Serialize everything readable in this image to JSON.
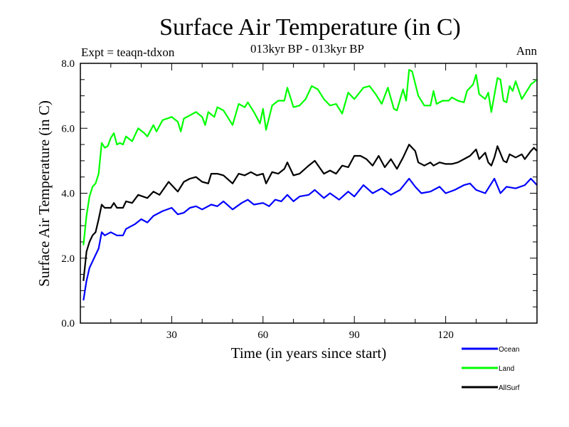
{
  "chart_data": {
    "type": "line",
    "title": "Surface Air Temperature (in C)",
    "subtitle": "013kyr BP - 013kyr BP",
    "left_label": "Expt = teaqn-tdxon",
    "right_label": "Ann",
    "xlabel": "Time (in years since start)",
    "ylabel": "Surface Air Temperature (in C)",
    "xlim": [
      0,
      150
    ],
    "ylim": [
      0,
      8
    ],
    "xticks": [
      30,
      60,
      90,
      120
    ],
    "xtick_labels": [
      "30",
      "60",
      "90",
      "120"
    ],
    "yticks": [
      0,
      2,
      4,
      6,
      8
    ],
    "ytick_labels": [
      "0.0",
      "2.0",
      "4.0",
      "6.0",
      "8.0"
    ],
    "grid": false,
    "legend_position": "bottom-right-outside",
    "series": [
      {
        "name": "Ocean",
        "color": "#0000ff",
        "x": [
          1,
          2,
          3,
          4,
          5,
          6,
          7,
          8,
          10,
          12,
          14,
          15,
          18,
          20,
          22,
          24,
          27,
          30,
          32,
          34,
          36,
          38,
          40,
          43,
          45,
          47,
          50,
          53,
          55,
          57,
          60,
          62,
          64,
          66,
          68,
          70,
          72,
          75,
          77,
          80,
          82,
          85,
          88,
          90,
          93,
          96,
          99,
          102,
          105,
          108,
          110,
          112,
          115,
          118,
          120,
          123,
          126,
          128,
          130,
          133,
          136,
          138,
          140,
          143,
          146,
          148,
          150
        ],
        "y": [
          0.7,
          1.3,
          1.7,
          1.9,
          2.1,
          2.3,
          2.8,
          2.7,
          2.8,
          2.7,
          2.7,
          2.9,
          3.05,
          3.2,
          3.1,
          3.3,
          3.45,
          3.55,
          3.35,
          3.4,
          3.55,
          3.6,
          3.5,
          3.65,
          3.6,
          3.75,
          3.5,
          3.7,
          3.8,
          3.65,
          3.7,
          3.6,
          3.8,
          3.75,
          3.95,
          3.75,
          3.9,
          3.95,
          4.1,
          3.85,
          4.0,
          3.8,
          4.05,
          3.9,
          4.25,
          4.0,
          4.15,
          3.95,
          4.1,
          4.45,
          4.2,
          4.0,
          4.05,
          4.2,
          4.0,
          4.1,
          4.25,
          4.3,
          4.1,
          4.0,
          4.45,
          4.0,
          4.2,
          4.15,
          4.25,
          4.45,
          4.25
        ]
      },
      {
        "name": "Land",
        "color": "#00ff00",
        "x": [
          1,
          2,
          3,
          4,
          5,
          6,
          7,
          8,
          9,
          10,
          11,
          12,
          13,
          14,
          15,
          17,
          19,
          21,
          22,
          24,
          25,
          27,
          30,
          32,
          33,
          34,
          36,
          38,
          40,
          41,
          42,
          44,
          45,
          47,
          50,
          52,
          54,
          55,
          57,
          59,
          60,
          61,
          63,
          65,
          67,
          68,
          70,
          72,
          74,
          76,
          78,
          80,
          82,
          84,
          86,
          88,
          90,
          93,
          95,
          97,
          99,
          101,
          103,
          104,
          106,
          107,
          108,
          109,
          111,
          113,
          115,
          116,
          117,
          119,
          121,
          122,
          124,
          126,
          127,
          129,
          130,
          131,
          133,
          134,
          135,
          137,
          138,
          139,
          140,
          141,
          142,
          143,
          145,
          147,
          148,
          150
        ],
        "y": [
          2.4,
          3.3,
          3.9,
          4.2,
          4.3,
          4.6,
          5.55,
          5.4,
          5.45,
          5.7,
          5.85,
          5.5,
          5.55,
          5.5,
          5.75,
          5.6,
          6.0,
          5.85,
          5.75,
          6.1,
          5.9,
          6.25,
          6.35,
          6.2,
          5.9,
          6.3,
          6.4,
          6.5,
          6.35,
          6.1,
          6.5,
          6.35,
          6.65,
          6.55,
          6.1,
          6.75,
          6.65,
          6.8,
          6.5,
          6.15,
          6.6,
          5.95,
          6.7,
          6.85,
          6.85,
          7.25,
          6.65,
          6.7,
          6.9,
          7.3,
          7.2,
          6.9,
          6.7,
          6.75,
          6.45,
          7.1,
          6.9,
          7.25,
          7.3,
          7.05,
          6.75,
          7.25,
          6.6,
          6.55,
          7.2,
          6.85,
          7.8,
          7.75,
          7.0,
          6.7,
          6.7,
          7.15,
          6.75,
          6.85,
          6.85,
          6.95,
          6.85,
          6.8,
          7.15,
          7.35,
          7.65,
          7.05,
          6.9,
          7.1,
          6.5,
          7.55,
          7.5,
          6.85,
          6.8,
          7.3,
          7.15,
          7.45,
          6.9,
          7.2,
          7.35,
          7.5
        ]
      },
      {
        "name": "AllSurf",
        "color": "#000000",
        "x": [
          1,
          2,
          3,
          4,
          5,
          6,
          7,
          8,
          10,
          11,
          12,
          14,
          15,
          17,
          19,
          22,
          24,
          26,
          29,
          32,
          34,
          36,
          38,
          40,
          42,
          43,
          45,
          47,
          50,
          52,
          54,
          56,
          58,
          60,
          61,
          63,
          65,
          67,
          68,
          70,
          72,
          75,
          77,
          80,
          82,
          84,
          86,
          88,
          90,
          92,
          94,
          96,
          98,
          100,
          102,
          104,
          106,
          108,
          110,
          111,
          113,
          115,
          116,
          118,
          120,
          122,
          124,
          126,
          128,
          130,
          131,
          133,
          134,
          135,
          136,
          137,
          139,
          140,
          141,
          143,
          145,
          146,
          148,
          149,
          150
        ],
        "y": [
          1.3,
          2.2,
          2.5,
          2.7,
          2.8,
          3.2,
          3.65,
          3.55,
          3.55,
          3.7,
          3.55,
          3.55,
          3.75,
          3.7,
          3.95,
          3.85,
          4.05,
          3.95,
          4.35,
          4.05,
          4.35,
          4.45,
          4.5,
          4.35,
          4.3,
          4.6,
          4.6,
          4.55,
          4.3,
          4.6,
          4.55,
          4.65,
          4.55,
          4.6,
          4.3,
          4.65,
          4.6,
          4.75,
          4.95,
          4.55,
          4.6,
          4.85,
          5.0,
          4.6,
          4.7,
          4.6,
          4.85,
          4.8,
          5.15,
          5.15,
          5.05,
          4.85,
          5.15,
          4.8,
          5.05,
          4.75,
          5.1,
          5.5,
          5.3,
          4.95,
          4.85,
          4.95,
          4.85,
          4.95,
          4.9,
          4.9,
          4.95,
          5.05,
          5.15,
          5.35,
          5.05,
          5.25,
          4.95,
          4.85,
          5.1,
          5.45,
          5.0,
          4.95,
          5.2,
          5.1,
          5.2,
          5.05,
          5.3,
          5.4,
          5.3
        ]
      }
    ]
  }
}
